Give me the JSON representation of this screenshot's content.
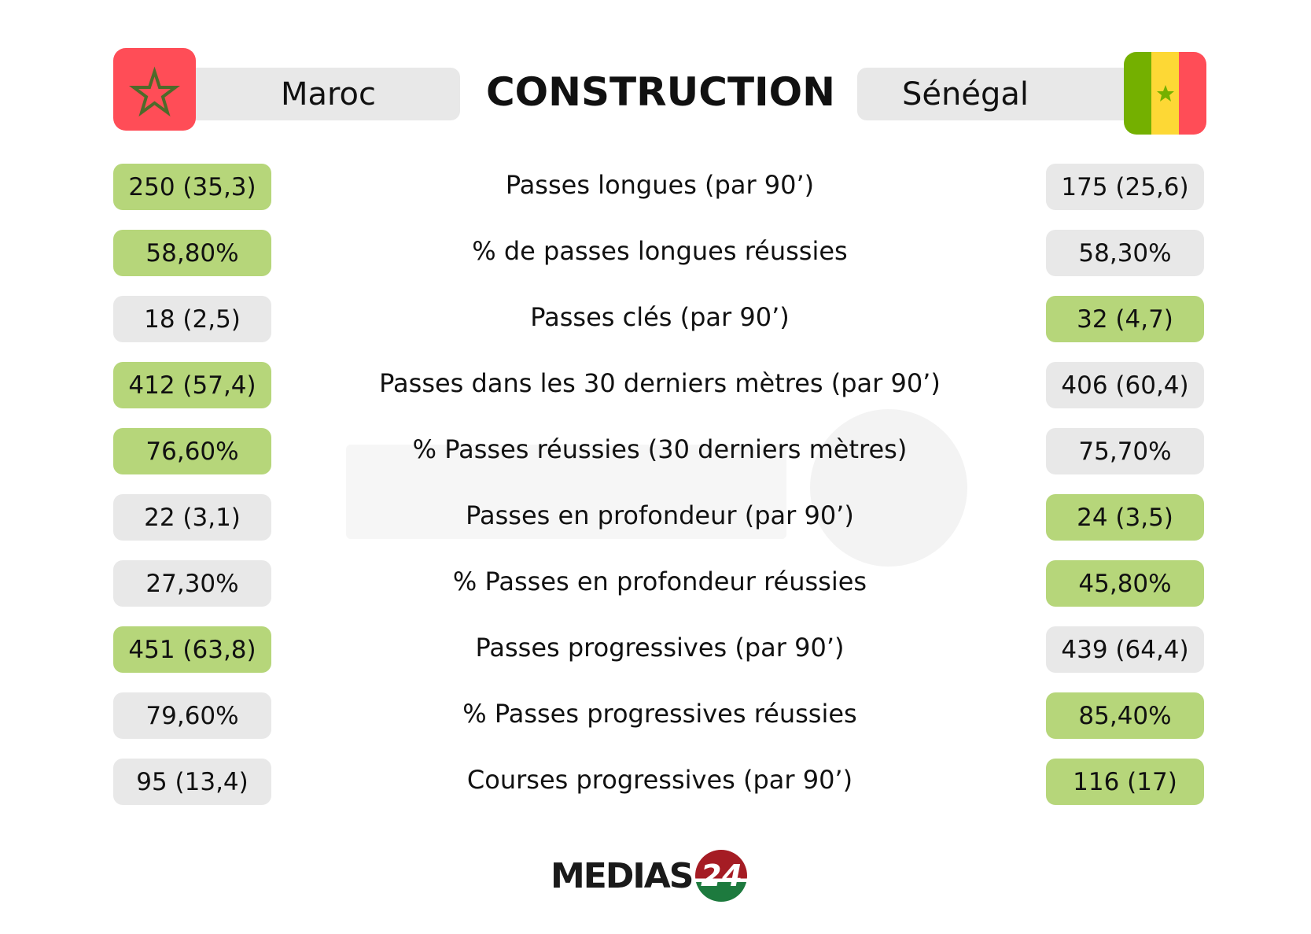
{
  "header": {
    "title": "CONSTRUCTION",
    "team_left": "Maroc",
    "team_right": "Sénégal"
  },
  "colors": {
    "better": "#b6d67a",
    "neutral": "#e8e8e8",
    "morocco_red": "#ff4d57",
    "morocco_star": "#4d6b2a",
    "senegal_green": "#74b000",
    "senegal_yellow": "#fdd835",
    "senegal_red": "#ff4d57"
  },
  "rows": [
    {
      "label": "Passes longues (par 90’)",
      "left": "250 (35,3)",
      "right": "175 (25,6)",
      "better": "left"
    },
    {
      "label": "% de passes longues réussies",
      "left": "58,80%",
      "right": "58,30%",
      "better": "left"
    },
    {
      "label": "Passes clés (par 90’)",
      "left": "18 (2,5)",
      "right": "32 (4,7)",
      "better": "right"
    },
    {
      "label": "Passes dans les 30 derniers mètres (par 90’)",
      "left": "412 (57,4)",
      "right": "406 (60,4)",
      "better": "left"
    },
    {
      "label": "% Passes réussies (30 derniers mètres)",
      "left": "76,60%",
      "right": "75,70%",
      "better": "left"
    },
    {
      "label": "Passes en profondeur (par 90’)",
      "left": "22 (3,1)",
      "right": "24 (3,5)",
      "better": "right"
    },
    {
      "label": "% Passes en profondeur réussies",
      "left": "27,30%",
      "right": "45,80%",
      "better": "right"
    },
    {
      "label": "Passes progressives (par 90’)",
      "left": "451 (63,8)",
      "right": "439 (64,4)",
      "better": "left"
    },
    {
      "label": "% Passes progressives réussies",
      "left": "79,60%",
      "right": "85,40%",
      "better": "right"
    },
    {
      "label": "Courses progressives (par 90’)",
      "left": "95 (13,4)",
      "right": "116 (17)",
      "better": "right"
    }
  ],
  "logo": {
    "text": "MEDIAS",
    "number": "24"
  },
  "watermark": "MEDIAS24"
}
